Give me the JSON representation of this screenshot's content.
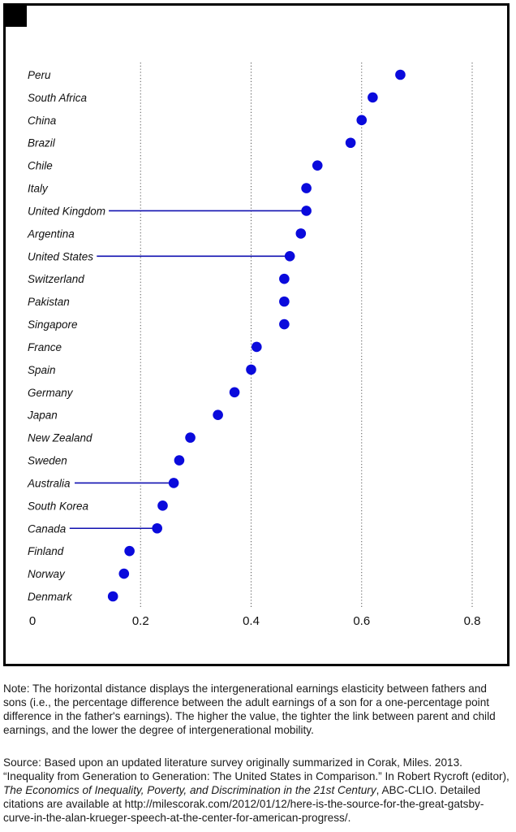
{
  "chart_data": {
    "type": "dot",
    "title": "",
    "xlabel": "",
    "ylabel": "",
    "xlim": [
      0,
      0.8
    ],
    "x_ticks": [
      0,
      0.2,
      0.4,
      0.6,
      0.8
    ],
    "x_tick_labels": [
      "0",
      "0.2",
      "0.4",
      "0.6",
      "0.8"
    ],
    "grid": "vertical dotted at 0.2, 0.4, 0.6, 0.8",
    "point_color": "#0a0adc",
    "highlight_line_color": "#1010b0",
    "points": [
      {
        "country": "Peru",
        "value": 0.67,
        "highlight": false
      },
      {
        "country": "South Africa",
        "value": 0.62,
        "highlight": false
      },
      {
        "country": "China",
        "value": 0.6,
        "highlight": false
      },
      {
        "country": "Brazil",
        "value": 0.58,
        "highlight": false
      },
      {
        "country": "Chile",
        "value": 0.52,
        "highlight": false
      },
      {
        "country": "Italy",
        "value": 0.5,
        "highlight": false
      },
      {
        "country": "United Kingdom",
        "value": 0.5,
        "highlight": true
      },
      {
        "country": "Argentina",
        "value": 0.49,
        "highlight": false
      },
      {
        "country": "United States",
        "value": 0.47,
        "highlight": true
      },
      {
        "country": "Switzerland",
        "value": 0.46,
        "highlight": false
      },
      {
        "country": "Pakistan",
        "value": 0.46,
        "highlight": false
      },
      {
        "country": "Singapore",
        "value": 0.46,
        "highlight": false
      },
      {
        "country": "France",
        "value": 0.41,
        "highlight": false
      },
      {
        "country": "Spain",
        "value": 0.4,
        "highlight": false
      },
      {
        "country": "Germany",
        "value": 0.37,
        "highlight": false
      },
      {
        "country": "Japan",
        "value": 0.34,
        "highlight": false
      },
      {
        "country": "New Zealand",
        "value": 0.29,
        "highlight": false
      },
      {
        "country": "Sweden",
        "value": 0.27,
        "highlight": false
      },
      {
        "country": "Australia",
        "value": 0.26,
        "highlight": true
      },
      {
        "country": "South Korea",
        "value": 0.24,
        "highlight": false
      },
      {
        "country": "Canada",
        "value": 0.23,
        "highlight": true
      },
      {
        "country": "Finland",
        "value": 0.18,
        "highlight": false
      },
      {
        "country": "Norway",
        "value": 0.17,
        "highlight": false
      },
      {
        "country": "Denmark",
        "value": 0.15,
        "highlight": false
      }
    ]
  },
  "note": "Note: The horizontal distance displays the intergenerational earnings elasticity between fathers and sons (i.e., the percentage difference between the adult earnings of a son for a one-percentage point difference in the father's earnings). The higher the value, the tighter the link between parent and child earnings, and the lower the degree of intergenerational mobility.",
  "source": {
    "intro": "Source: Based upon an updated literature survey originally summarized in Corak, Miles. 2013. “Inequality from Generation to Generation: The United States in Comparison.” In Robert Rycroft (editor), ",
    "book_title": "The Economics of Inequality, Poverty, and Discrimination in the 21st Century",
    "tail": ", ABC-CLIO. Detailed citations are available at http://milescorak.com/2012/01/12/here-is-the-source-for-the-great-gatsby-curve-in-the-alan-krueger-speech-at-the-center-for-american-progress/."
  }
}
